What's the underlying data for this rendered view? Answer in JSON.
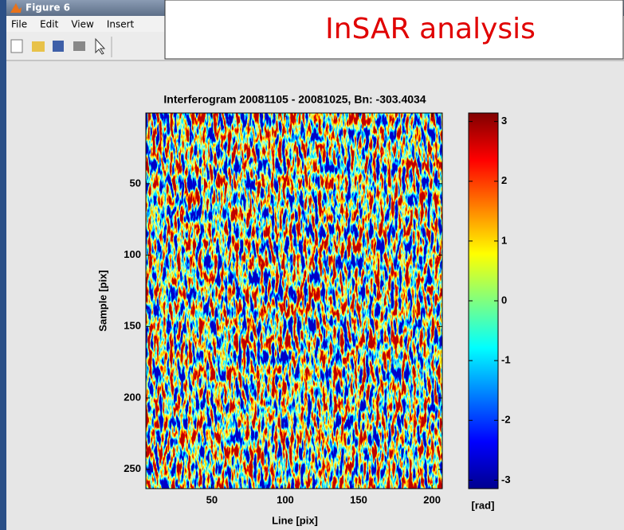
{
  "window": {
    "title": "Figure 6",
    "menu": [
      "File",
      "Edit",
      "View",
      "Insert"
    ]
  },
  "overlay_title": "InSAR analysis",
  "chart_data": {
    "type": "heatmap",
    "title": "Interferogram 20081105 - 20081025, Bn: -303.4034",
    "x_label": "Line [pix]",
    "y_label": "Sample [pix]",
    "xlim": [
      5,
      207
    ],
    "ylim": [
      0.5,
      263.5
    ],
    "y_reversed": true,
    "xticks": [
      50,
      100,
      150,
      200
    ],
    "yticks": [
      50,
      100,
      150,
      200,
      250
    ],
    "colorbar": {
      "label": "[rad]",
      "lim": [
        -3.1416,
        3.1416
      ],
      "ticks": [
        -3,
        -2,
        -1,
        0,
        1,
        2,
        3
      ],
      "colormap": "jet"
    }
  }
}
